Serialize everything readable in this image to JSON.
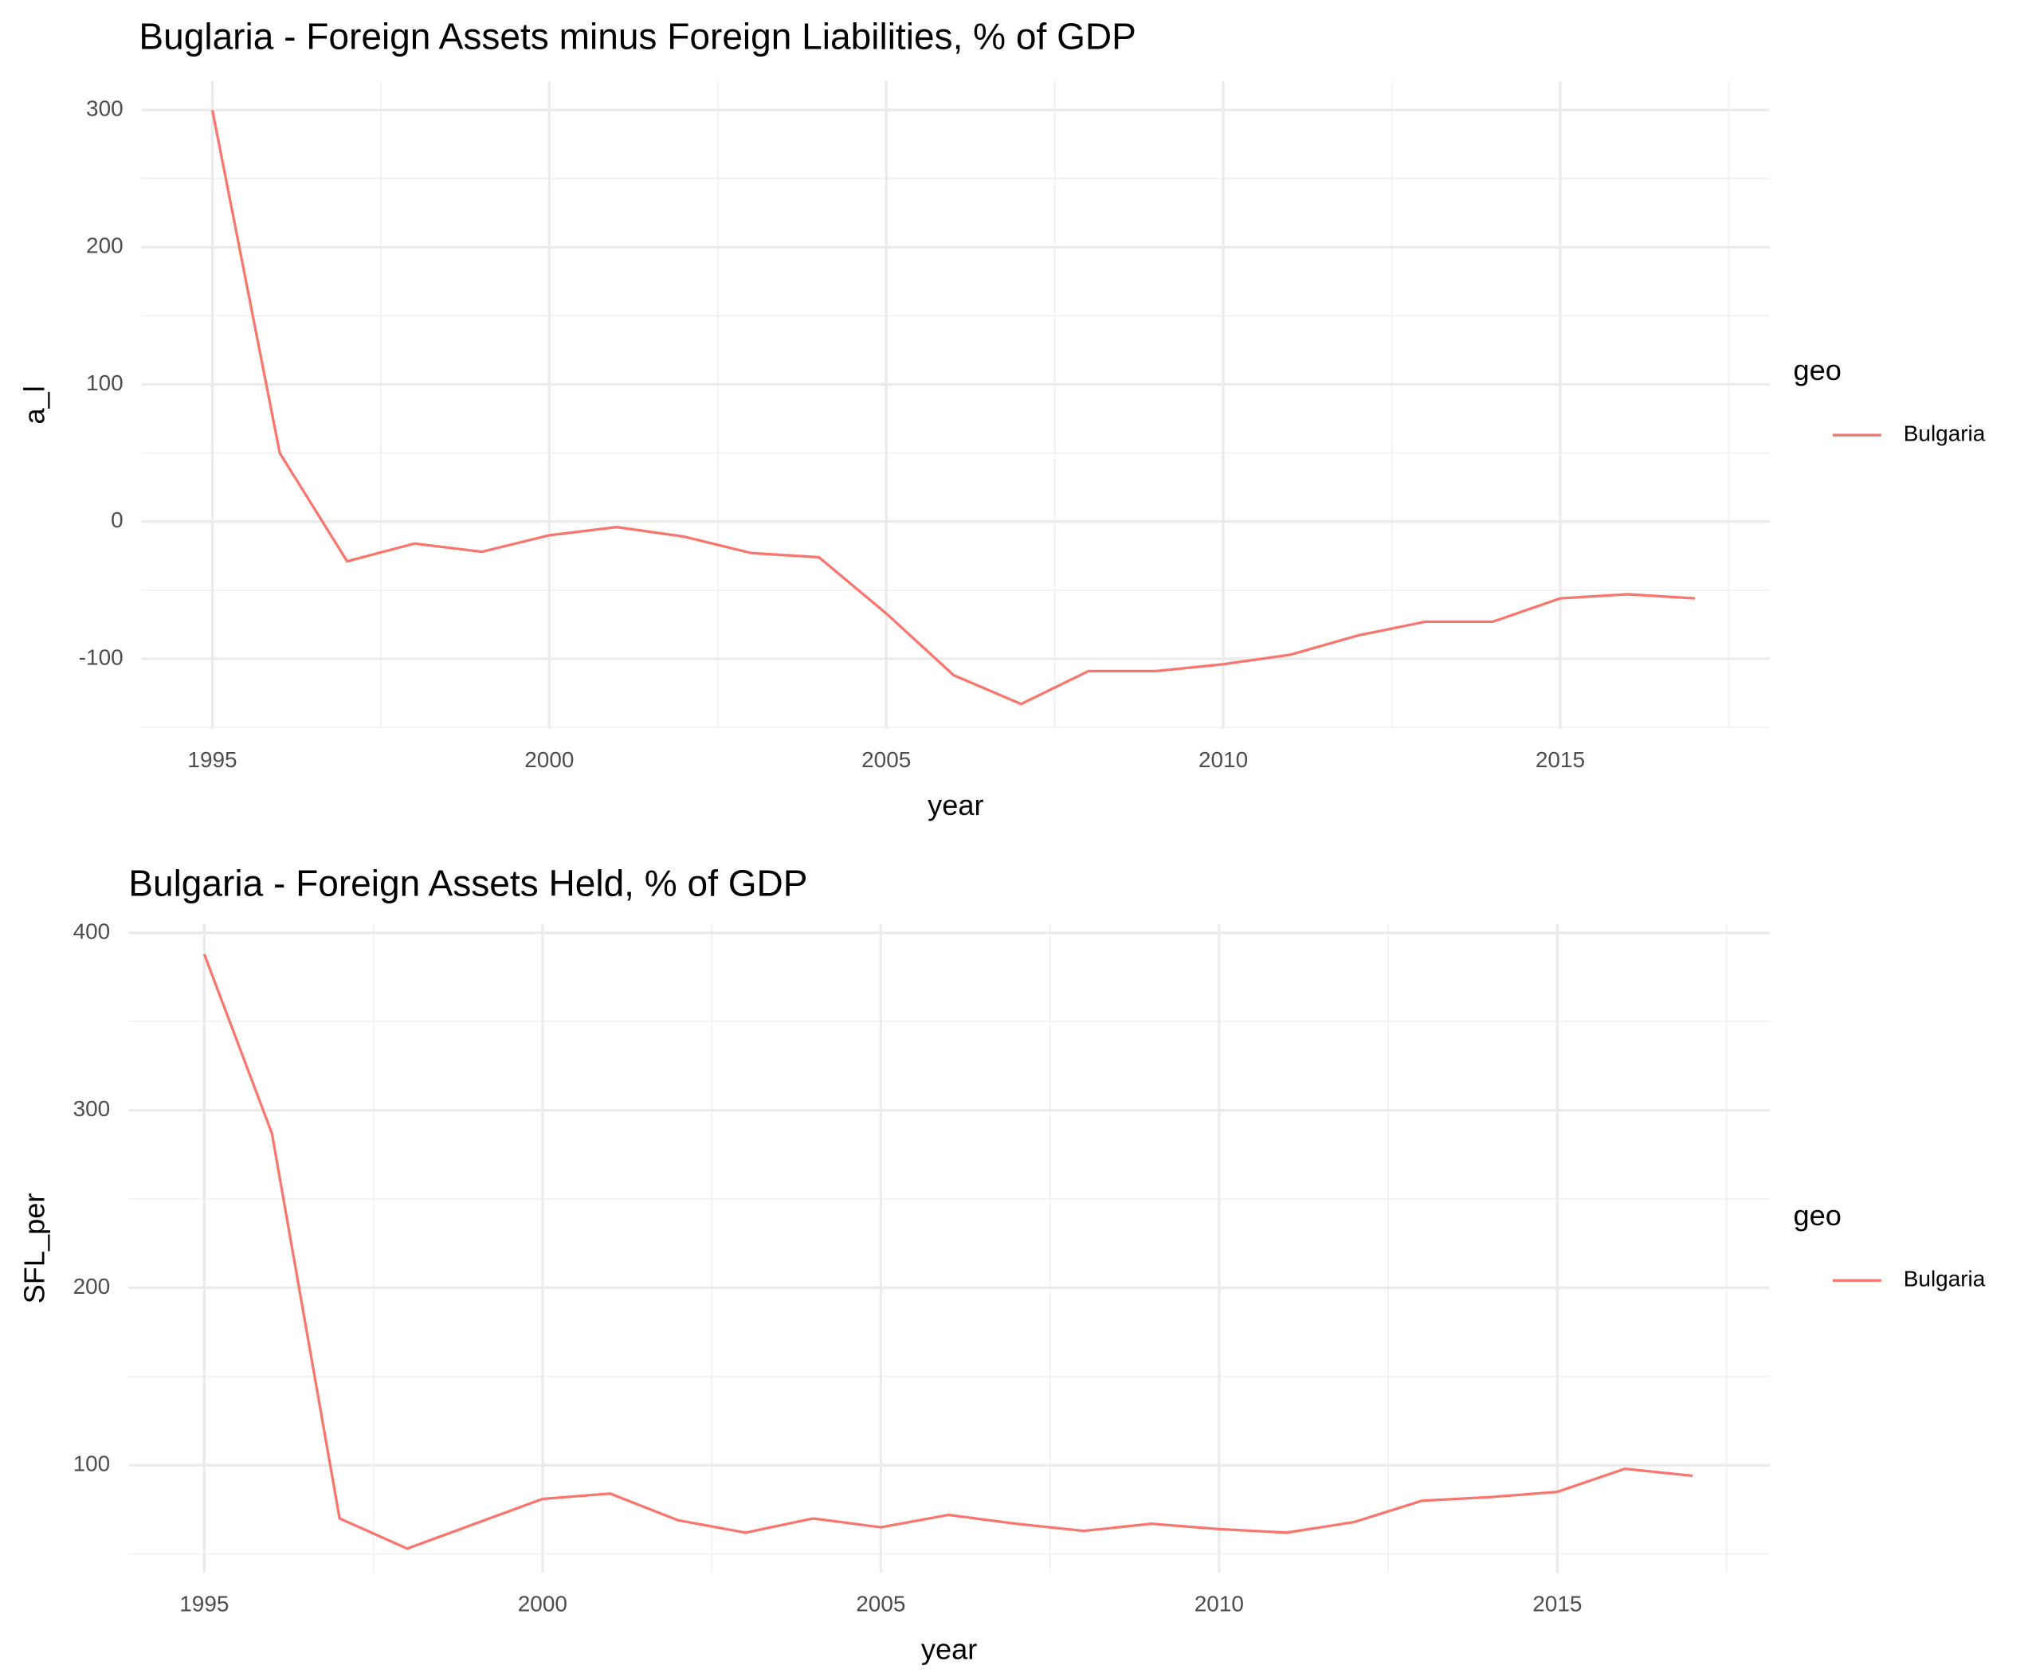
{
  "chart_data": [
    {
      "type": "line",
      "title": "Buglaria - Foreign Assets minus Foreign Liabilities, % of GDP",
      "x_label": "year",
      "y_label": "a_l",
      "legend_title": "geo",
      "x": [
        1995,
        1996,
        1997,
        1998,
        1999,
        2000,
        2001,
        2002,
        2003,
        2004,
        2005,
        2006,
        2007,
        2008,
        2009,
        2010,
        2011,
        2012,
        2013,
        2014,
        2015,
        2016,
        2017
      ],
      "series": [
        {
          "name": "Bulgaria",
          "color": "#f8766d",
          "values": [
            300,
            50,
            -29,
            -16,
            -22,
            -10,
            -4,
            -11,
            -23,
            -26,
            -67,
            -112,
            -133,
            -109,
            -109,
            -104,
            -97,
            -83,
            -73,
            -73,
            -56,
            -53,
            -56
          ]
        }
      ],
      "xlim": [
        1993.95,
        2018.11
      ],
      "xticks": [
        1995,
        2000,
        2005,
        2010,
        2015
      ],
      "ylim": [
        -151,
        321
      ],
      "yticks": [
        -100,
        0,
        100,
        200,
        300
      ],
      "grid": true,
      "legend": "right"
    },
    {
      "type": "line",
      "title": "Bulgaria - Foreign Assets Held, % of GDP",
      "x_label": "year",
      "y_label": "SFL_per",
      "legend_title": "geo",
      "x": [
        1995,
        1996,
        1997,
        1998,
        1999,
        2000,
        2001,
        2002,
        2003,
        2004,
        2005,
        2006,
        2007,
        2008,
        2009,
        2010,
        2011,
        2012,
        2013,
        2014,
        2015,
        2016,
        2017
      ],
      "series": [
        {
          "name": "Bulgaria",
          "color": "#f8766d",
          "values": [
            388,
            287,
            70,
            53,
            67,
            81,
            84,
            69,
            62,
            70,
            65,
            72,
            67,
            63,
            67,
            64,
            62,
            68,
            80,
            82,
            85,
            98,
            94
          ]
        }
      ],
      "xlim": [
        1993.88,
        2018.14
      ],
      "xticks": [
        1995,
        2000,
        2005,
        2010,
        2015
      ],
      "ylim": [
        39.4,
        405
      ],
      "yticks": [
        100,
        200,
        300,
        400
      ],
      "grid": true,
      "legend": "right"
    }
  ]
}
